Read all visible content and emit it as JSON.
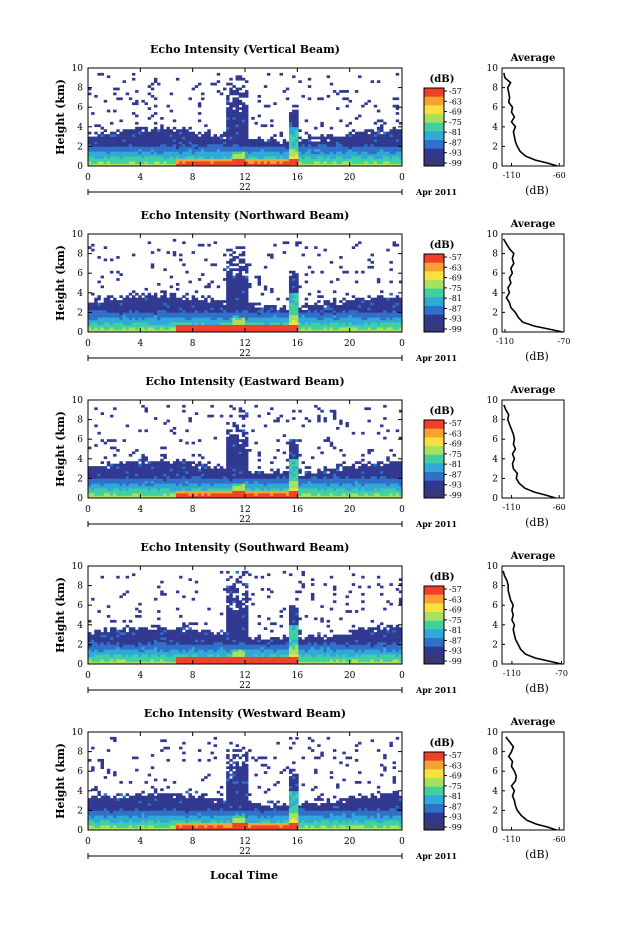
{
  "figure": {
    "xlabel": "Local Time",
    "date_label": "Apr 2011",
    "colorbar_unit": "(dB)",
    "colorbar_ticks": [
      "-57",
      "-63",
      "-69",
      "-75",
      "-81",
      "-87",
      "-93",
      "-99"
    ],
    "colorbar_colors": [
      "#f0402a",
      "#f8a030",
      "#f8e040",
      "#a8e060",
      "#40d0a0",
      "#30a8d8",
      "#3070c8",
      "#303890",
      "#383878"
    ]
  },
  "chart_data": [
    {
      "type": "heatmap",
      "title": "Echo Intensity (Vertical Beam)",
      "ylabel": "Height (km)",
      "x_ticks": [
        "0",
        "4",
        "8",
        "12",
        "16",
        "20",
        "0"
      ],
      "xlim": [
        0,
        24
      ],
      "y_ticks": [
        "0",
        "2",
        "4",
        "6",
        "8",
        "10"
      ],
      "ylim": [
        0,
        10
      ],
      "date_day": "22",
      "profile": {
        "title": "Average",
        "xlabel": "(dB)",
        "x_ticks": [
          "-110",
          "-60"
        ],
        "x_tick_values": [
          -110,
          -60
        ],
        "xlim": [
          -120,
          -55
        ],
        "y_ticks": [
          "0",
          "2",
          "4",
          "6",
          "8",
          "10"
        ],
        "height": [
          0,
          0.3,
          0.6,
          1,
          1.5,
          2,
          2.5,
          3,
          3.5,
          4,
          4.5,
          5,
          5.5,
          6,
          6.5,
          7,
          7.5,
          8,
          8.5,
          9,
          9.5
        ],
        "values": [
          -62,
          -72,
          -85,
          -95,
          -101,
          -104,
          -106,
          -107,
          -108,
          -106,
          -110,
          -107,
          -110,
          -109,
          -113,
          -112,
          -113,
          -114,
          -111,
          -117,
          -118
        ]
      }
    },
    {
      "type": "heatmap",
      "title": "Echo Intensity (Northward Beam)",
      "ylabel": "Height (km)",
      "x_ticks": [
        "0",
        "4",
        "8",
        "12",
        "16",
        "20",
        "0"
      ],
      "xlim": [
        0,
        24
      ],
      "y_ticks": [
        "0",
        "2",
        "4",
        "6",
        "8",
        "10"
      ],
      "ylim": [
        0,
        10
      ],
      "date_day": "22",
      "profile": {
        "title": "Average",
        "xlabel": "(dB)",
        "x_ticks": [
          "-110",
          "-70"
        ],
        "x_tick_values": [
          -110,
          -70
        ],
        "xlim": [
          -112,
          -70
        ],
        "y_ticks": [
          "0",
          "2",
          "4",
          "6",
          "8",
          "10"
        ],
        "height": [
          0,
          0.3,
          0.6,
          1,
          1.5,
          2,
          2.5,
          3,
          3.5,
          4,
          4.5,
          5,
          5.5,
          6,
          6.5,
          7,
          7.5,
          8,
          8.5,
          9,
          9.5
        ],
        "values": [
          -71,
          -80,
          -90,
          -98,
          -101,
          -103,
          -106,
          -107,
          -109,
          -107,
          -108,
          -106,
          -107,
          -105,
          -106,
          -104,
          -105,
          -104,
          -107,
          -109,
          -111
        ]
      }
    },
    {
      "type": "heatmap",
      "title": "Echo Intensity (Eastward Beam)",
      "ylabel": "Height (km)",
      "x_ticks": [
        "0",
        "4",
        "8",
        "12",
        "16",
        "20",
        "0"
      ],
      "xlim": [
        0,
        24
      ],
      "y_ticks": [
        "0",
        "2",
        "4",
        "6",
        "8",
        "10"
      ],
      "ylim": [
        0,
        10
      ],
      "date_day": "22",
      "profile": {
        "title": "Average",
        "xlabel": "(dB)",
        "x_ticks": [
          "-110",
          "-60"
        ],
        "x_tick_values": [
          -110,
          -60
        ],
        "xlim": [
          -120,
          -55
        ],
        "y_ticks": [
          "0",
          "2",
          "4",
          "6",
          "8",
          "10"
        ],
        "height": [
          0,
          0.3,
          0.6,
          1,
          1.5,
          2,
          2.5,
          3,
          3.5,
          4,
          4.5,
          5,
          5.5,
          6,
          6.5,
          7,
          7.5,
          8,
          8.5,
          9,
          9.5
        ],
        "values": [
          -64,
          -74,
          -86,
          -96,
          -102,
          -105,
          -104,
          -108,
          -109,
          -107,
          -109,
          -106,
          -108,
          -107,
          -108,
          -110,
          -112,
          -114,
          -113,
          -116,
          -118
        ]
      }
    },
    {
      "type": "heatmap",
      "title": "Echo Intensity (Southward Beam)",
      "ylabel": "Height (km)",
      "x_ticks": [
        "0",
        "4",
        "8",
        "12",
        "16",
        "20",
        "0"
      ],
      "xlim": [
        0,
        24
      ],
      "y_ticks": [
        "0",
        "2",
        "4",
        "6",
        "8",
        "10"
      ],
      "ylim": [
        0,
        10
      ],
      "date_day": "22",
      "profile": {
        "title": "Average",
        "xlabel": "(dB)",
        "x_ticks": [
          "-110",
          "-70"
        ],
        "x_tick_values": [
          -110,
          -70
        ],
        "xlim": [
          -118,
          -68
        ],
        "y_ticks": [
          "0",
          "2",
          "4",
          "6",
          "8",
          "10"
        ],
        "height": [
          0,
          0.3,
          0.6,
          1,
          1.5,
          2,
          2.5,
          3,
          3.5,
          4,
          4.5,
          5,
          5.5,
          6,
          6.5,
          7,
          7.5,
          8,
          8.5,
          9,
          9.5
        ],
        "values": [
          -70,
          -80,
          -91,
          -99,
          -103,
          -105,
          -107,
          -108,
          -109,
          -108,
          -110,
          -109,
          -110,
          -109,
          -111,
          -112,
          -113,
          -113,
          -114,
          -116,
          -117
        ]
      }
    },
    {
      "type": "heatmap",
      "title": "Echo Intensity (Westward Beam)",
      "ylabel": "Height (km)",
      "x_ticks": [
        "0",
        "4",
        "8",
        "12",
        "16",
        "20",
        "0"
      ],
      "xlim": [
        0,
        24
      ],
      "y_ticks": [
        "0",
        "2",
        "4",
        "6",
        "8",
        "10"
      ],
      "ylim": [
        0,
        10
      ],
      "date_day": "22",
      "profile": {
        "title": "Average",
        "xlabel": "(dB)",
        "x_ticks": [
          "-110",
          "-60"
        ],
        "x_tick_values": [
          -110,
          -60
        ],
        "xlim": [
          -120,
          -55
        ],
        "y_ticks": [
          "0",
          "2",
          "4",
          "6",
          "8",
          "10"
        ],
        "height": [
          0,
          0.3,
          0.6,
          1,
          1.5,
          2,
          2.5,
          3,
          3.5,
          4,
          4.5,
          5,
          5.5,
          6,
          6.5,
          7,
          7.5,
          8,
          8.5,
          9,
          9.5
        ],
        "values": [
          -63,
          -72,
          -84,
          -94,
          -100,
          -104,
          -106,
          -107,
          -109,
          -107,
          -110,
          -106,
          -105,
          -107,
          -110,
          -109,
          -113,
          -110,
          -108,
          -112,
          -116
        ]
      }
    }
  ]
}
